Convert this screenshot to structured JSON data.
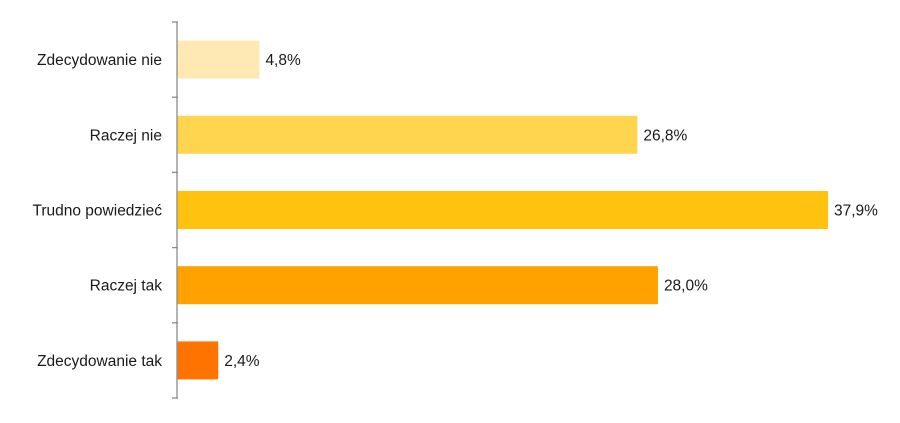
{
  "chart_data": {
    "type": "bar",
    "orientation": "horizontal",
    "title": "",
    "xlabel": "",
    "ylabel": "",
    "categories": [
      "Zdecydowanie nie",
      "Raczej nie",
      "Trudno powiedzieć",
      "Raczej tak",
      "Zdecydowanie tak"
    ],
    "values": [
      4.8,
      26.8,
      37.9,
      28.0,
      2.4
    ],
    "value_labels": [
      "4,8%",
      "26,8%",
      "37,9%",
      "28,0%",
      "2,4%"
    ],
    "colors": [
      "#FFE9B3",
      "#FFD54F",
      "#FFC20E",
      "#FFA200",
      "#FF7400"
    ],
    "xlim": [
      0,
      38
    ],
    "grid": false,
    "legend": "none",
    "axis_color": "#8c8c8c"
  }
}
